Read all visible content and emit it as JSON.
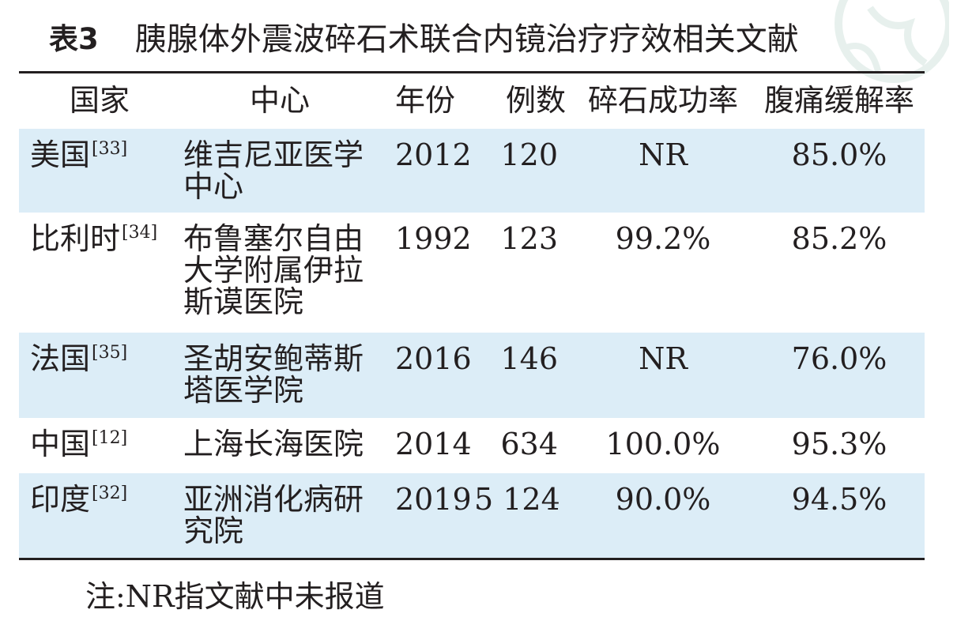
{
  "caption": {
    "label": "表3",
    "title": "胰腺体外震波碎石术联合内镜治疗疗效相关文献"
  },
  "table": {
    "headers": [
      "国家",
      "中心",
      "年份",
      "例数",
      "碎石成功率",
      "腹痛缓解率"
    ],
    "rows": [
      {
        "country": "美国",
        "ref": "[33]",
        "center": "维吉尼亚医学中心",
        "year": "2012",
        "cases": "120",
        "stone_success": "NR",
        "pain_relief": "85.0%"
      },
      {
        "country": "比利时",
        "ref": "[34]",
        "center": "布鲁塞尔自由大学附属伊拉斯谟医院",
        "year": "1992",
        "cases": "123",
        "stone_success": "99.2%",
        "pain_relief": "85.2%"
      },
      {
        "country": "法国",
        "ref": "[35]",
        "center": "圣胡安鲍蒂斯塔医学院",
        "year": "2016",
        "cases": "146",
        "stone_success": "NR",
        "pain_relief": "76.0%"
      },
      {
        "country": "中国",
        "ref": "[12]",
        "center": "上海长海医院",
        "year": "2014",
        "cases": "634",
        "stone_success": "100.0%",
        "pain_relief": "95.3%"
      },
      {
        "country": "印度",
        "ref": "[32]",
        "center": "亚洲消化病研究院",
        "year": "2019",
        "cases": "5 124",
        "stone_success": "90.0%",
        "pain_relief": "94.5%"
      }
    ]
  },
  "note": "注:NR指文献中未报道",
  "colors": {
    "row_shade": "#dcedf7",
    "rule": "#231f20",
    "text": "#231f20"
  }
}
